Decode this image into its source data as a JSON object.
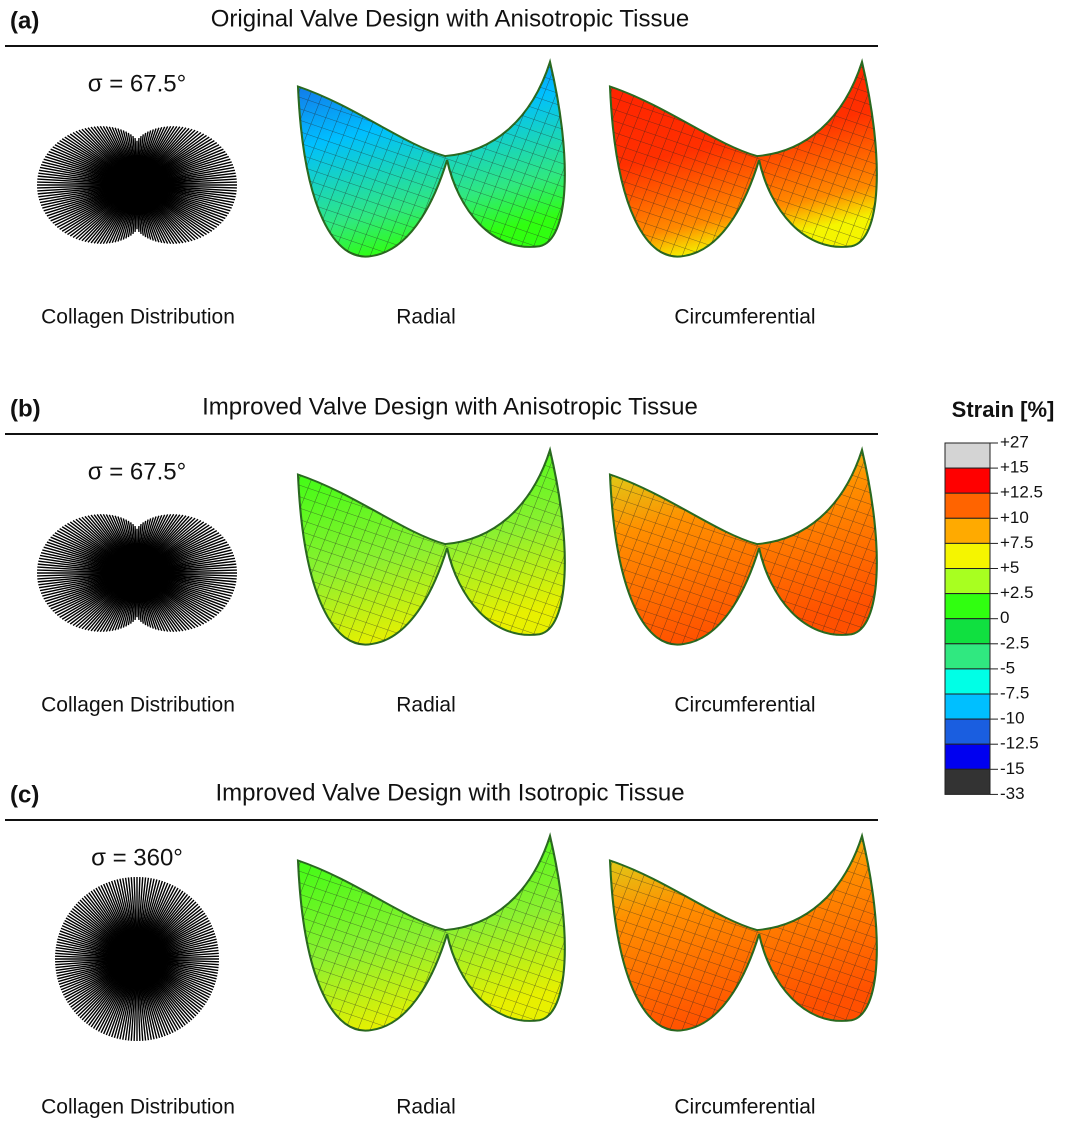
{
  "panels": [
    {
      "label": "(a)",
      "title": "Original Valve Design with Anisotropic Tissue",
      "sigma": "σ = 67.5°",
      "captions": [
        "Collagen Distribution",
        "Radial",
        "Circumferential"
      ]
    },
    {
      "label": "(b)",
      "title": "Improved Valve Design with Anisotropic Tissue",
      "sigma": "σ = 67.5°",
      "captions": [
        "Collagen Distribution",
        "Radial",
        "Circumferential"
      ]
    },
    {
      "label": "(c)",
      "title": "Improved Valve Design with Isotropic Tissue",
      "sigma": "σ = 360°",
      "captions": [
        "Collagen Distribution",
        "Radial",
        "Circumferential"
      ]
    }
  ],
  "legend": {
    "title": "Strain [%]",
    "labels": [
      "+27",
      "+15",
      "+12.5",
      "+10",
      "+7.5",
      "+5",
      "+2.5",
      "0",
      "-2.5",
      "-5",
      "-7.5",
      "-10",
      "-12.5",
      "-15",
      "-33"
    ],
    "colors": [
      "#d4d4d4",
      "#ff0000",
      "#ff6400",
      "#ffaa00",
      "#f5f500",
      "#a8ff20",
      "#30ff10",
      "#10e040",
      "#30e880",
      "#00ffe6",
      "#00bfff",
      "#1a5ee0",
      "#0000f0",
      "#333333"
    ]
  }
}
